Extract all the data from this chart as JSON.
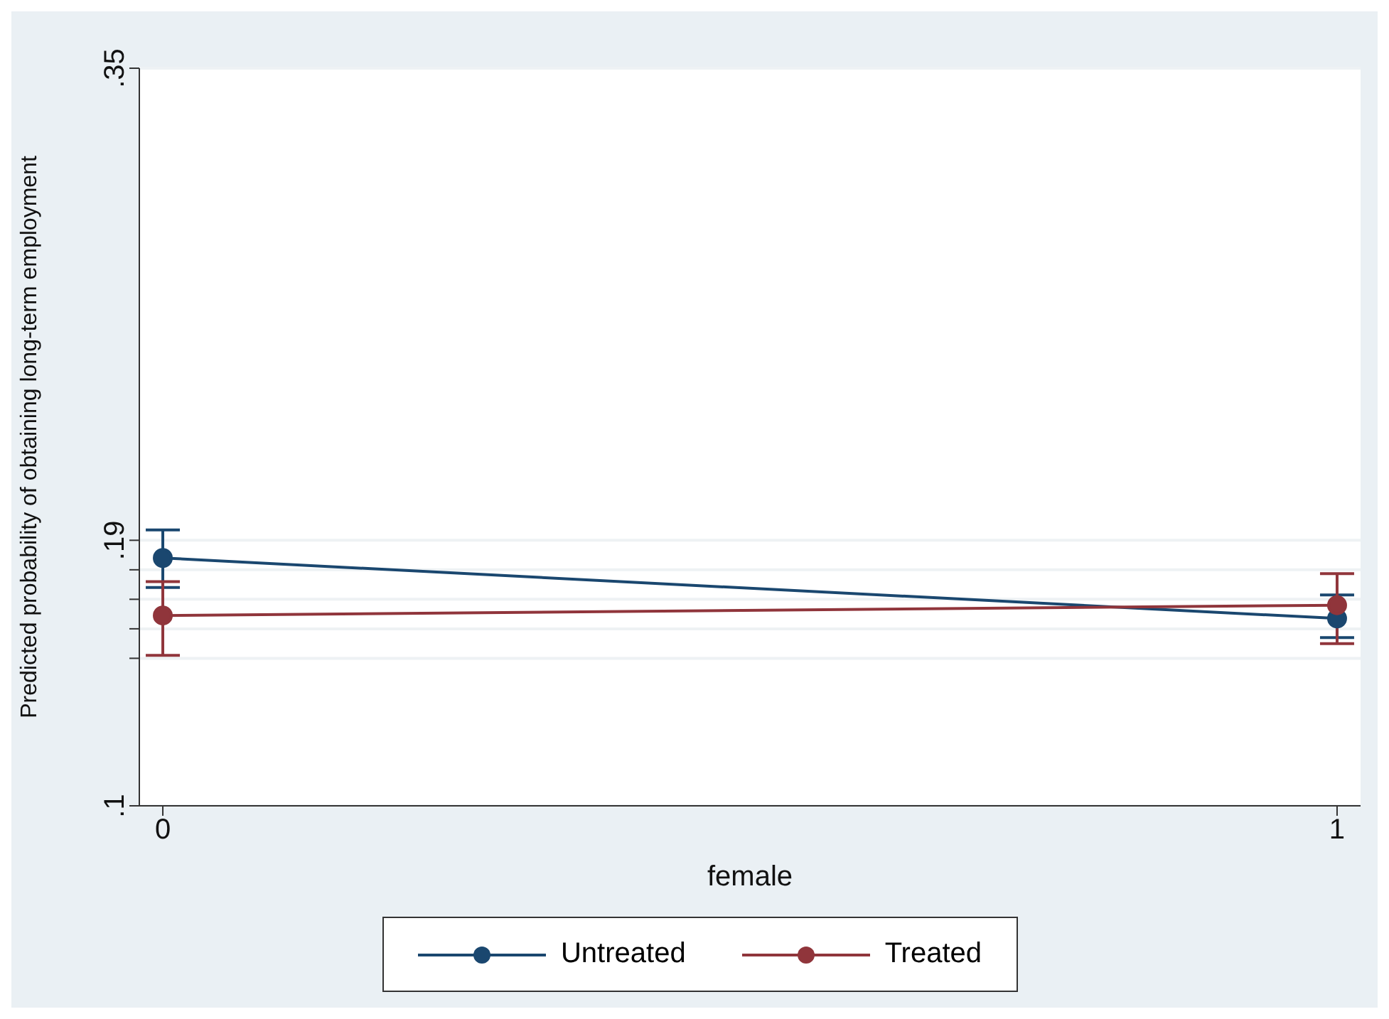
{
  "chart_data": {
    "type": "line",
    "xlabel": "female",
    "ylabel": "Predicted probability of obtaining long-term employment",
    "x": [
      0,
      1
    ],
    "xlim": [
      -0.02,
      1.02
    ],
    "xticks": [
      0,
      1
    ],
    "ylim": [
      0.1,
      0.35
    ],
    "yticks": [
      {
        "value": 0.1,
        "label": ".1"
      },
      {
        "value": 0.15,
        "label": null
      },
      {
        "value": 0.16,
        "label": null
      },
      {
        "value": 0.17,
        "label": null
      },
      {
        "value": 0.18,
        "label": null
      },
      {
        "value": 0.19,
        "label": ".19"
      },
      {
        "value": 0.35,
        "label": ".35"
      }
    ],
    "grid": "y",
    "legend": "bottom",
    "marker": "circle",
    "series": [
      {
        "name": "Untreated",
        "color": "#1a476f",
        "values": [
          0.184,
          0.1635
        ],
        "errors": [
          [
            0.174,
            0.1935
          ],
          [
            0.157,
            0.1715
          ]
        ]
      },
      {
        "name": "Treated",
        "color": "#90353b",
        "values": [
          0.1645,
          0.168
        ],
        "errors": [
          [
            0.151,
            0.176
          ],
          [
            0.155,
            0.1787
          ]
        ]
      }
    ]
  }
}
